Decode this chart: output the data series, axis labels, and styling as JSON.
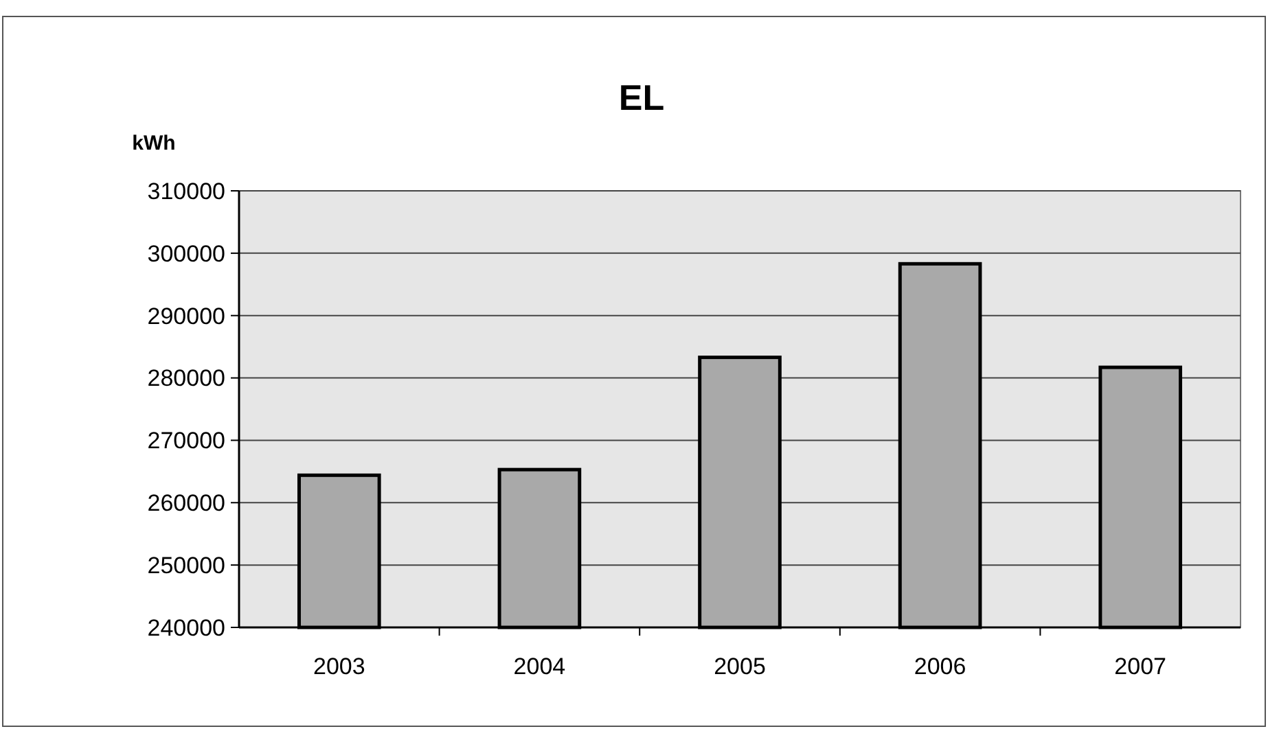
{
  "chart_data": {
    "type": "bar",
    "title": "EL",
    "ylabel": "kWh",
    "categories": [
      "2003",
      "2004",
      "2005",
      "2006",
      "2007"
    ],
    "values": [
      264400,
      265300,
      283300,
      298300,
      281700
    ],
    "color": "#a9a9a9",
    "ylim": [
      240000,
      310000
    ],
    "yticks": [
      240000,
      250000,
      260000,
      270000,
      280000,
      290000,
      300000,
      310000
    ],
    "grid": "y"
  }
}
